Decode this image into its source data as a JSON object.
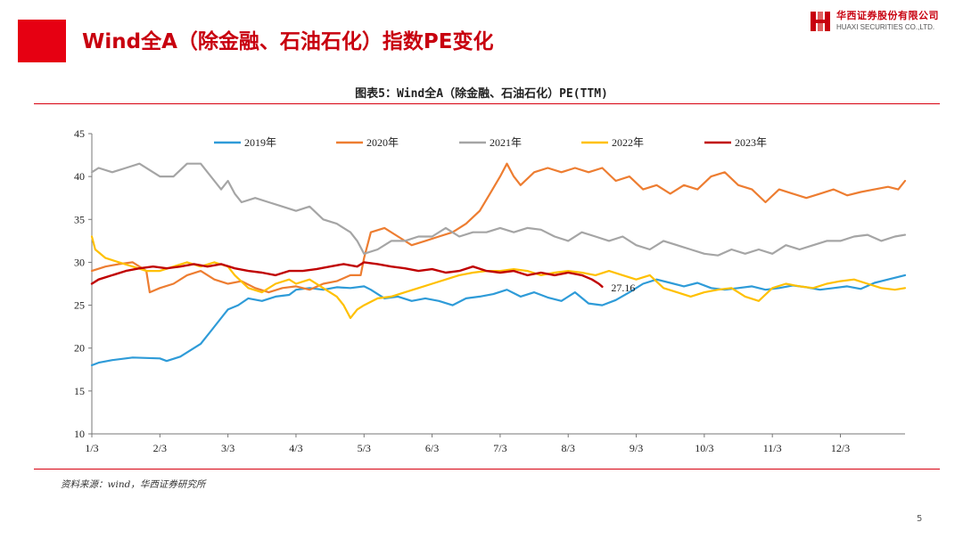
{
  "header": {
    "title": "Wind全A（除金融、石油石化）指数PE变化"
  },
  "logo": {
    "cn": "华西证券股份有限公司",
    "en": "HUAXI SECURITIES CO.,LTD.",
    "accent": "#c8000f"
  },
  "figure_title": "图表5：Wind全A（除金融、石油石化）PE(TTM)",
  "source": "资料来源：wind，华西证券研究所",
  "page_number": "5",
  "chart_data": {
    "type": "line",
    "ylim": [
      10,
      45
    ],
    "yticks": [
      10,
      15,
      20,
      25,
      30,
      35,
      40,
      45
    ],
    "xlim": [
      1,
      12.95
    ],
    "xticks": [
      1,
      2,
      3,
      4,
      5,
      6,
      7,
      8,
      9,
      10,
      11,
      12
    ],
    "xtick_labels": [
      "1/3",
      "2/3",
      "3/3",
      "4/3",
      "5/3",
      "6/3",
      "7/3",
      "8/3",
      "9/3",
      "10/3",
      "11/3",
      "12/3"
    ],
    "legend_position": "top",
    "annotation": {
      "text": "27.16",
      "x": 8.5,
      "y": 27.16
    },
    "series": [
      {
        "name": "2019年",
        "color": "#2e9bd8",
        "width": 2.2,
        "x": [
          1.0,
          1.1,
          1.3,
          1.6,
          2.0,
          2.1,
          2.3,
          2.6,
          2.75,
          2.9,
          3.0,
          3.15,
          3.3,
          3.5,
          3.7,
          3.9,
          4.0,
          4.2,
          4.4,
          4.6,
          4.8,
          5.0,
          5.1,
          5.3,
          5.5,
          5.7,
          5.9,
          6.1,
          6.3,
          6.5,
          6.7,
          6.9,
          7.1,
          7.3,
          7.5,
          7.7,
          7.9,
          8.1,
          8.3,
          8.5,
          8.7,
          8.9,
          9.1,
          9.3,
          9.5,
          9.7,
          9.9,
          10.1,
          10.3,
          10.5,
          10.7,
          10.9,
          11.1,
          11.3,
          11.5,
          11.7,
          11.9,
          12.1,
          12.3,
          12.5,
          12.7,
          12.95
        ],
        "y": [
          18.0,
          18.3,
          18.6,
          18.9,
          18.8,
          18.5,
          19.0,
          20.5,
          22.0,
          23.5,
          24.5,
          25.0,
          25.8,
          25.5,
          26.0,
          26.2,
          26.8,
          27.0,
          26.8,
          27.1,
          27.0,
          27.2,
          26.8,
          25.8,
          26.0,
          25.5,
          25.8,
          25.5,
          25.0,
          25.8,
          26.0,
          26.3,
          26.8,
          26.0,
          26.5,
          25.9,
          25.5,
          26.5,
          25.2,
          25.0,
          25.6,
          26.5,
          27.5,
          28.0,
          27.6,
          27.2,
          27.6,
          27.0,
          26.8,
          27.0,
          27.2,
          26.8,
          27.0,
          27.3,
          27.1,
          26.8,
          27.0,
          27.2,
          26.9,
          27.6,
          28.0,
          28.5
        ]
      },
      {
        "name": "2020年",
        "color": "#ed7d31",
        "width": 2.2,
        "x": [
          1.0,
          1.2,
          1.4,
          1.6,
          1.8,
          1.85,
          2.0,
          2.2,
          2.4,
          2.6,
          2.8,
          3.0,
          3.2,
          3.4,
          3.6,
          3.8,
          4.0,
          4.2,
          4.4,
          4.6,
          4.8,
          4.95,
          5.0,
          5.1,
          5.3,
          5.5,
          5.7,
          5.9,
          6.1,
          6.3,
          6.5,
          6.7,
          6.85,
          7.0,
          7.1,
          7.2,
          7.3,
          7.5,
          7.7,
          7.9,
          8.1,
          8.3,
          8.5,
          8.7,
          8.9,
          9.1,
          9.3,
          9.5,
          9.7,
          9.9,
          10.1,
          10.3,
          10.5,
          10.7,
          10.9,
          11.1,
          11.3,
          11.5,
          11.7,
          11.9,
          12.1,
          12.3,
          12.5,
          12.7,
          12.85,
          12.95
        ],
        "y": [
          29.0,
          29.5,
          29.8,
          30.0,
          29.0,
          26.5,
          27.0,
          27.5,
          28.5,
          29.0,
          28.0,
          27.5,
          27.8,
          27.0,
          26.5,
          27.0,
          27.2,
          26.8,
          27.5,
          27.8,
          28.5,
          28.5,
          30.5,
          33.5,
          34.0,
          33.0,
          32.0,
          32.5,
          33.0,
          33.5,
          34.5,
          36.0,
          38.0,
          40.0,
          41.5,
          40.0,
          39.0,
          40.5,
          41.0,
          40.5,
          41.0,
          40.5,
          41.0,
          39.5,
          40.0,
          38.5,
          39.0,
          38.0,
          39.0,
          38.5,
          40.0,
          40.5,
          39.0,
          38.5,
          37.0,
          38.5,
          38.0,
          37.5,
          38.0,
          38.5,
          37.8,
          38.2,
          38.5,
          38.8,
          38.5,
          39.5
        ]
      },
      {
        "name": "2021年",
        "color": "#a5a5a5",
        "width": 2.2,
        "x": [
          1.0,
          1.1,
          1.3,
          1.5,
          1.7,
          1.9,
          2.0,
          2.2,
          2.4,
          2.6,
          2.8,
          2.9,
          3.0,
          3.1,
          3.2,
          3.4,
          3.6,
          3.8,
          4.0,
          4.2,
          4.4,
          4.6,
          4.8,
          4.9,
          5.0,
          5.2,
          5.4,
          5.6,
          5.8,
          6.0,
          6.2,
          6.4,
          6.6,
          6.8,
          7.0,
          7.2,
          7.4,
          7.6,
          7.8,
          8.0,
          8.2,
          8.4,
          8.6,
          8.8,
          9.0,
          9.2,
          9.4,
          9.6,
          9.8,
          10.0,
          10.2,
          10.4,
          10.6,
          10.8,
          11.0,
          11.2,
          11.4,
          11.6,
          11.8,
          12.0,
          12.2,
          12.4,
          12.6,
          12.8,
          12.95
        ],
        "y": [
          40.5,
          41.0,
          40.5,
          41.0,
          41.5,
          40.5,
          40.0,
          40.0,
          41.5,
          41.5,
          39.5,
          38.5,
          39.5,
          38.0,
          37.0,
          37.5,
          37.0,
          36.5,
          36.0,
          36.5,
          35.0,
          34.5,
          33.5,
          32.5,
          31.0,
          31.5,
          32.5,
          32.5,
          33.0,
          33.0,
          34.0,
          33.0,
          33.5,
          33.5,
          34.0,
          33.5,
          34.0,
          33.8,
          33.0,
          32.5,
          33.5,
          33.0,
          32.5,
          33.0,
          32.0,
          31.5,
          32.5,
          32.0,
          31.5,
          31.0,
          30.8,
          31.5,
          31.0,
          31.5,
          31.0,
          32.0,
          31.5,
          32.0,
          32.5,
          32.5,
          33.0,
          33.2,
          32.5,
          33.0,
          33.2
        ]
      },
      {
        "name": "2022年",
        "color": "#ffc000",
        "width": 2.2,
        "x": [
          1.0,
          1.05,
          1.2,
          1.4,
          1.6,
          1.8,
          2.0,
          2.2,
          2.4,
          2.6,
          2.8,
          3.0,
          3.1,
          3.3,
          3.5,
          3.7,
          3.9,
          4.0,
          4.2,
          4.4,
          4.6,
          4.7,
          4.8,
          4.9,
          5.0,
          5.2,
          5.4,
          5.6,
          5.8,
          6.0,
          6.2,
          6.4,
          6.6,
          6.8,
          7.0,
          7.2,
          7.4,
          7.6,
          7.8,
          8.0,
          8.2,
          8.4,
          8.6,
          8.8,
          9.0,
          9.2,
          9.4,
          9.6,
          9.8,
          10.0,
          10.2,
          10.4,
          10.6,
          10.8,
          11.0,
          11.2,
          11.4,
          11.6,
          11.8,
          12.0,
          12.2,
          12.4,
          12.6,
          12.8,
          12.95
        ],
        "y": [
          33.0,
          31.5,
          30.5,
          30.0,
          29.5,
          29.0,
          29.0,
          29.5,
          30.0,
          29.5,
          30.0,
          29.5,
          28.5,
          27.0,
          26.5,
          27.5,
          28.0,
          27.5,
          28.0,
          27.0,
          26.0,
          25.0,
          23.5,
          24.5,
          25.0,
          25.8,
          26.0,
          26.5,
          27.0,
          27.5,
          28.0,
          28.5,
          28.8,
          29.0,
          29.0,
          29.2,
          29.0,
          28.5,
          28.8,
          29.0,
          28.8,
          28.5,
          29.0,
          28.5,
          28.0,
          28.5,
          27.0,
          26.5,
          26.0,
          26.5,
          26.8,
          27.0,
          26.0,
          25.5,
          27.0,
          27.5,
          27.2,
          27.0,
          27.5,
          27.8,
          28.0,
          27.5,
          27.0,
          26.8,
          27.0
        ]
      },
      {
        "name": "2023年",
        "color": "#c00000",
        "width": 2.4,
        "x": [
          1.0,
          1.1,
          1.3,
          1.5,
          1.7,
          1.9,
          2.1,
          2.3,
          2.5,
          2.7,
          2.9,
          3.1,
          3.3,
          3.5,
          3.7,
          3.9,
          4.1,
          4.3,
          4.5,
          4.7,
          4.9,
          5.0,
          5.2,
          5.4,
          5.6,
          5.8,
          6.0,
          6.2,
          6.4,
          6.6,
          6.8,
          7.0,
          7.2,
          7.4,
          7.6,
          7.8,
          8.0,
          8.2,
          8.35,
          8.45,
          8.5
        ],
        "y": [
          27.5,
          28.0,
          28.5,
          29.0,
          29.3,
          29.5,
          29.3,
          29.5,
          29.8,
          29.5,
          29.8,
          29.3,
          29.0,
          28.8,
          28.5,
          29.0,
          29.0,
          29.2,
          29.5,
          29.8,
          29.5,
          30.0,
          29.8,
          29.5,
          29.3,
          29.0,
          29.2,
          28.8,
          29.0,
          29.5,
          29.0,
          28.8,
          29.0,
          28.5,
          28.8,
          28.5,
          28.8,
          28.5,
          28.0,
          27.5,
          27.16
        ]
      }
    ]
  }
}
